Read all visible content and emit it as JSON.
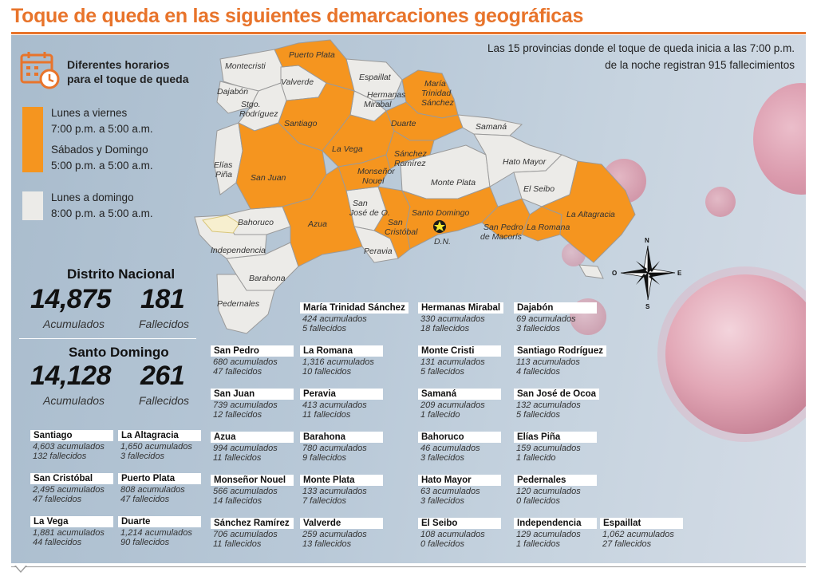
{
  "title": "Toque de queda en las siguientes demarcaciones geográficas",
  "legend": {
    "heading_line1": "Diferentes horarios",
    "heading_line2": "para el toque de queda",
    "orange_line1": "Lunes a viernes",
    "orange_line2": "7:00 p.m. a 5:00 a.m.",
    "orange_line3": "Sábados y Domingo",
    "orange_line4": "5:00 p.m. a 5:00 a.m.",
    "white_line1": "Lunes a domingo",
    "white_line2": "8:00 p.m. a 5:00 a.m.",
    "orange_color": "#f5951f",
    "white_color": "#ecebe8"
  },
  "note": {
    "line1": "Las 15 provincias donde el toque de queda inicia a las 7:00 p.m.",
    "line2": "de la noche registran 915 fallecimientos"
  },
  "compass": {
    "n": "N",
    "s": "S",
    "e": "E",
    "o": "O"
  },
  "map_labels": {
    "montecristi": "Montecristi",
    "puerto_plata": "Puerto Plata",
    "valverde": "Valverde",
    "espaillat": "Espaillat",
    "maria_l1": "María",
    "maria_l2": "Trinidad",
    "maria_l3": "Sánchez",
    "dajabon": "Dajabón",
    "stgo_l1": "Stgo.",
    "stgo_l2": "Rodríguez",
    "hermanas_l1": "Hermanas",
    "hermanas_l2": "Mirabal",
    "santiago": "Santiago",
    "duarte": "Duarte",
    "samana": "Samaná",
    "la_vega": "La Vega",
    "sanchez_l1": "Sánchez",
    "sanchez_l2": "Ramírez",
    "hato_mayor": "Hato Mayor",
    "elias_l1": "Elías",
    "elias_l2": "Piña",
    "san_juan": "San Juan",
    "monsenor_l1": "Monseñor",
    "monsenor_l2": "Nouel",
    "monte_plata": "Monte Plata",
    "el_seibo": "El Seibo",
    "sjo_l1": "San",
    "sjo_l2": "José de O.",
    "santo_domingo": "Santo Domingo",
    "la_altagracia": "La Altagracia",
    "bahoruco": "Bahoruco",
    "azua": "Azua",
    "san_cristobal_l1": "San",
    "san_cristobal_l2": "Cristóbal",
    "dn": "D.N.",
    "spm_l1": "San Pedro",
    "spm_l2": "de Macorís",
    "la_romana": "La Romana",
    "independencia": "Independencia",
    "peravia": "Peravia",
    "barahona": "Barahona",
    "pedernales": "Pedernales"
  },
  "big_stats": [
    {
      "name": "Distrito Nacional",
      "acumulados": "14,875",
      "fallecidos": "181",
      "acum_label": "Acumulados",
      "fall_label": "Fallecidos"
    },
    {
      "name": "Santo Domingo",
      "acumulados": "14,128",
      "fallecidos": "261",
      "acum_label": "Acumulados",
      "fall_label": "Fallecidos"
    }
  ],
  "provinces": [
    {
      "name": "Santiago",
      "line1": "4,603 acumulados",
      "line2": "132 fallecidos"
    },
    {
      "name": "La Altagracia",
      "line1": "1,650 acumulados",
      "line2": "3 fallecidos"
    },
    {
      "name": "San Cristóbal",
      "line1": "2,495 acumulados",
      "line2": "47 fallecidos"
    },
    {
      "name": "Puerto Plata",
      "line1": "808 acumulados",
      "line2": "47 fallecidos"
    },
    {
      "name": "La Vega",
      "line1": "1,881 acumulados",
      "line2": "44 fallecidos"
    },
    {
      "name": "Duarte",
      "line1": "1,214 acumulados",
      "line2": "90 fallecidos"
    },
    {
      "name": "San Pedro",
      "line1": "680 acumulados",
      "line2": "47 fallecidos"
    },
    {
      "name": "San Juan",
      "line1": "739 acumulados",
      "line2": "12 fallecidos"
    },
    {
      "name": "Azua",
      "line1": "994 acumulados",
      "line2": "11 fallecidos"
    },
    {
      "name": "Monseñor Nouel",
      "line1": "566 acumulados",
      "line2": "14 fallecidos"
    },
    {
      "name": "Sánchez Ramírez",
      "line1": "706 acumulados",
      "line2": "11 fallecidos"
    },
    {
      "name": "María Trinidad Sánchez",
      "line1": "424 acumulados",
      "line2": "5 fallecidos"
    },
    {
      "name": "La Romana",
      "line1": "1,316 acumulados",
      "line2": "10 fallecidos"
    },
    {
      "name": "Peravia",
      "line1": "413 acumulados",
      "line2": "11 fallecidos"
    },
    {
      "name": "Barahona",
      "line1": "780 acumulados",
      "line2": "9 fallecidos"
    },
    {
      "name": "Monte Plata",
      "line1": "133 acumulados",
      "line2": "7 fallecidos"
    },
    {
      "name": "Valverde",
      "line1": "259 acumulados",
      "line2": "13 fallecidos"
    },
    {
      "name": "Hermanas Mirabal",
      "line1": "330 acumulados",
      "line2": "18 fallecidos"
    },
    {
      "name": "Monte Cristi",
      "line1": "131 acumulados",
      "line2": "5 fallecidos"
    },
    {
      "name": "Samaná",
      "line1": "209 acumulados",
      "line2": "1 fallecido"
    },
    {
      "name": "Bahoruco",
      "line1": "46 acumulados",
      "line2": "3 fallecidos"
    },
    {
      "name": "Hato Mayor",
      "line1": "63 acumulados",
      "line2": "3 fallecidos"
    },
    {
      "name": "El Seibo",
      "line1": "108 acumulados",
      "line2": "0 fallecidos"
    },
    {
      "name": "Dajabón",
      "line1": "69 acumulados",
      "line2": "3 fallecidos"
    },
    {
      "name": "Santiago Rodríguez",
      "line1": "113 acumulados",
      "line2": "4 fallecidos"
    },
    {
      "name": "San José de Ocoa",
      "line1": "132 acumulados",
      "line2": "5 fallecidos"
    },
    {
      "name": "Elías Piña",
      "line1": "159 acumulados",
      "line2": "1 fallecido"
    },
    {
      "name": "Pedernales",
      "line1": "120 acumulados",
      "line2": "0 fallecidos"
    },
    {
      "name": "Independencia",
      "line1": "129 acumulados",
      "line2": "1 fallecidos"
    },
    {
      "name": "Espaillat",
      "line1": "1,062 acumulados",
      "line2": "27 fallecidos"
    }
  ]
}
